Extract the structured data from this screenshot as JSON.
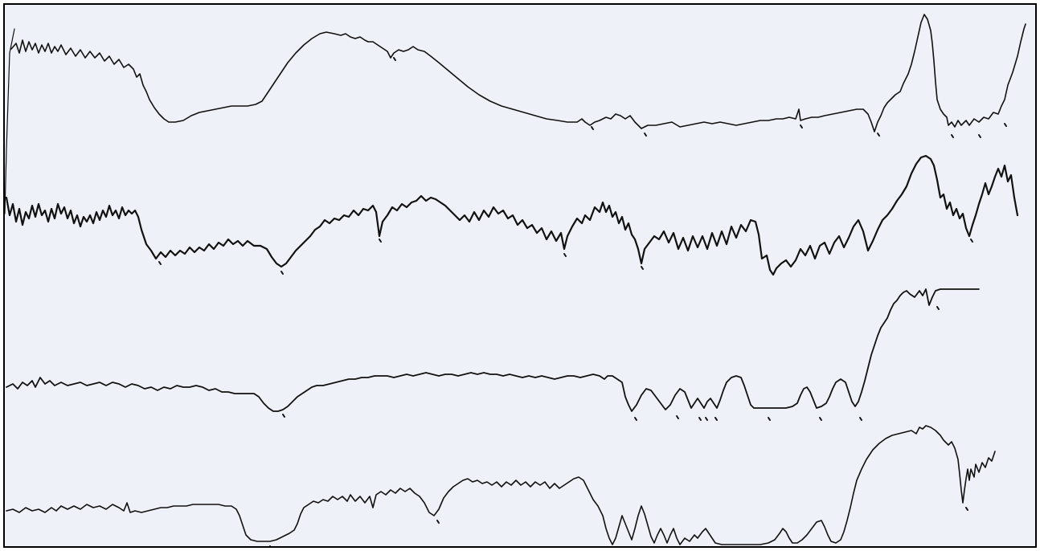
{
  "scan": {
    "paper_color": "#eef1f7",
    "ink_color": "#111111",
    "frame_color": "#000000",
    "trace_count": 4,
    "has_text": false
  },
  "icons": {
    "marks": "small-tick-mark-icon"
  }
}
